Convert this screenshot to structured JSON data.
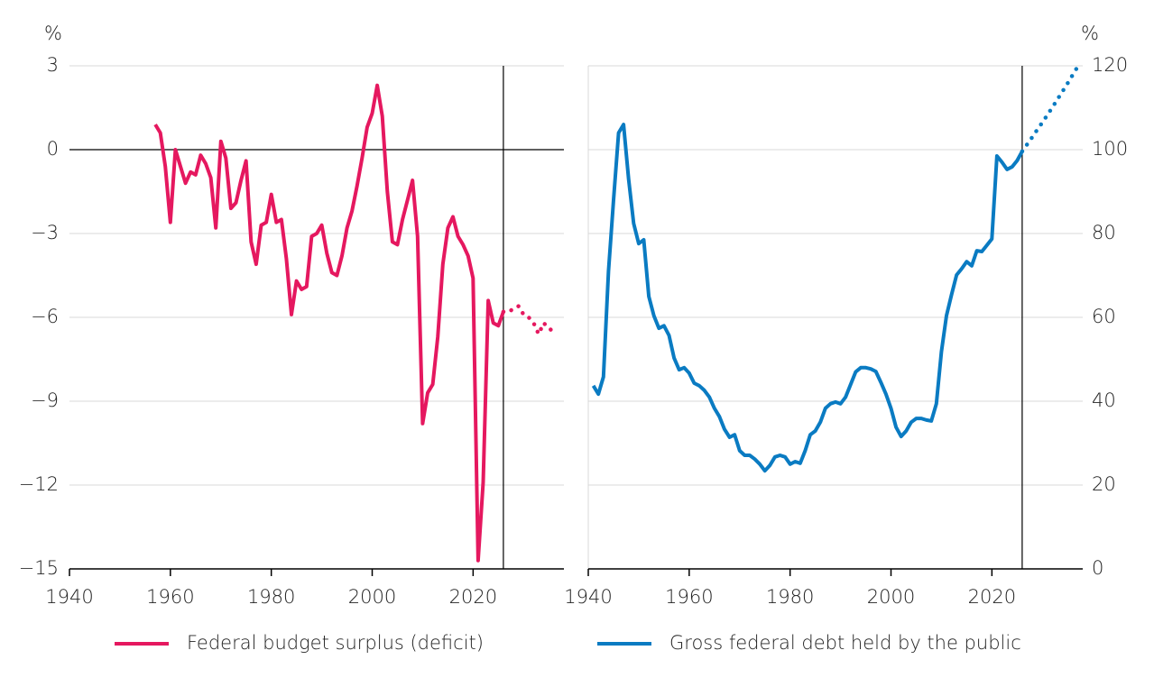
{
  "chart_data": [
    {
      "type": "line",
      "y_unit": "%",
      "y_axis_side": "left",
      "xlim": [
        1940,
        2038
      ],
      "xticks": [
        1940,
        1960,
        1980,
        2000,
        2020
      ],
      "ylim": [
        -15,
        3
      ],
      "yticks": [
        {
          "value": -15,
          "label": "−15"
        },
        {
          "value": -12,
          "label": "−12"
        },
        {
          "value": -9,
          "label": "−9"
        },
        {
          "value": -6,
          "label": "−6"
        },
        {
          "value": -3,
          "label": "−3"
        },
        0,
        3
      ],
      "grid": true,
      "zero_line": true,
      "vline": 2026,
      "series": [
        {
          "name": "Federal budget surplus (deficit)",
          "color": "#e5185f",
          "x": [
            1957,
            1958,
            1959,
            1960,
            1961,
            1962,
            1963,
            1964,
            1965,
            1966,
            1967,
            1968,
            1969,
            1970,
            1971,
            1972,
            1973,
            1974,
            1975,
            1976,
            1977,
            1978,
            1979,
            1980,
            1981,
            1982,
            1983,
            1984,
            1985,
            1986,
            1987,
            1988,
            1989,
            1990,
            1991,
            1992,
            1993,
            1994,
            1995,
            1996,
            1997,
            1998,
            1999,
            2000,
            2001,
            2002,
            2003,
            2004,
            2005,
            2006,
            2007,
            2008,
            2009,
            2010,
            2011,
            2012,
            2013,
            2014,
            2015,
            2016,
            2017,
            2018,
            2019,
            2020,
            2021,
            2022,
            2023,
            2024,
            2025,
            2026
          ],
          "values": [
            0.9,
            0.6,
            -0.6,
            -2.6,
            0.0,
            -0.6,
            -1.2,
            -0.8,
            -0.9,
            -0.2,
            -0.5,
            -1.0,
            -2.8,
            0.3,
            -0.3,
            -2.1,
            -1.9,
            -1.1,
            -0.4,
            -3.3,
            -4.1,
            -2.7,
            -2.6,
            -1.6,
            -2.6,
            -2.5,
            -3.9,
            -5.9,
            -4.7,
            -5.0,
            -4.9,
            -3.1,
            -3.0,
            -2.7,
            -3.7,
            -4.4,
            -4.5,
            -3.8,
            -2.8,
            -2.2,
            -1.3,
            -0.3,
            0.8,
            1.3,
            2.3,
            1.2,
            -1.5,
            -3.3,
            -3.4,
            -2.5,
            -1.8,
            -1.1,
            -3.1,
            -9.8,
            -8.7,
            -8.4,
            -6.7,
            -4.1,
            -2.8,
            -2.4,
            -3.1,
            -3.4,
            -3.8,
            -4.6,
            -14.7,
            -11.9,
            -5.4,
            -6.2,
            -6.3,
            -5.8
          ]
        },
        {
          "color": "#e5185f",
          "dotted": true,
          "x": [
            2026,
            2027,
            2028,
            2029,
            2030,
            2031,
            2032,
            2033,
            2034,
            2035,
            2036
          ],
          "values": [
            -5.8,
            -5.8,
            -5.7,
            -5.6,
            -5.9,
            -6.0,
            -6.2,
            -6.6,
            -6.2,
            -6.4,
            -6.5
          ]
        }
      ]
    },
    {
      "type": "line",
      "y_unit": "%",
      "y_axis_side": "right",
      "xlim": [
        1940,
        2038
      ],
      "xticks": [
        1940,
        1960,
        1980,
        2000,
        2020
      ],
      "ylim": [
        0,
        120
      ],
      "yticks": [
        0,
        20,
        40,
        60,
        80,
        100,
        120
      ],
      "grid": true,
      "zero_line": false,
      "vline": 2026,
      "series": [
        {
          "name": "Gross federal debt held by the public",
          "color": "#0a7bc2",
          "x": [
            1941,
            1942,
            1943,
            1944,
            1945,
            1946,
            1947,
            1948,
            1949,
            1950,
            1951,
            1952,
            1953,
            1954,
            1955,
            1956,
            1957,
            1958,
            1959,
            1960,
            1961,
            1962,
            1963,
            1964,
            1965,
            1966,
            1967,
            1968,
            1969,
            1970,
            1971,
            1972,
            1973,
            1974,
            1975,
            1976,
            1977,
            1978,
            1979,
            1980,
            1981,
            1982,
            1983,
            1984,
            1985,
            1986,
            1987,
            1988,
            1989,
            1990,
            1991,
            1992,
            1993,
            1994,
            1995,
            1996,
            1997,
            1998,
            1999,
            2000,
            2001,
            2002,
            2003,
            2004,
            2005,
            2006,
            2007,
            2008,
            2009,
            2010,
            2011,
            2012,
            2013,
            2014,
            2015,
            2016,
            2017,
            2018,
            2019,
            2020,
            2021,
            2022,
            2023,
            2024,
            2025,
            2026
          ],
          "values": [
            43.7,
            41.7,
            45.8,
            71,
            88,
            104,
            106,
            93,
            82.4,
            77.6,
            78.5,
            65,
            60.4,
            57.4,
            58,
            55.7,
            50.3,
            47.5,
            48,
            46.7,
            44.3,
            43.7,
            42.6,
            41,
            38.3,
            36.3,
            33.3,
            31.4,
            32,
            28.2,
            27.1,
            27.1,
            26.2,
            25,
            23.4,
            24.7,
            26.7,
            27.1,
            26.7,
            25,
            25.6,
            25.2,
            28.2,
            32,
            32.9,
            35,
            38.3,
            39.4,
            39.8,
            39.4,
            41,
            44,
            47,
            48,
            48,
            47.7,
            47.1,
            44.5,
            41.7,
            38.3,
            33.8,
            31.6,
            32.9,
            35,
            35.9,
            35.9,
            35.5,
            35.3,
            39.4,
            51.8,
            60.4,
            65.4,
            70.1,
            71.6,
            73.3,
            72.3,
            75.9,
            75.7,
            77.2,
            78.7,
            98.5,
            97,
            95.3,
            95.9,
            97.4,
            99.6
          ]
        },
        {
          "color": "#0a7bc2",
          "dotted": true,
          "x": [
            2026,
            2027,
            2028,
            2029,
            2030,
            2031,
            2032,
            2033,
            2034,
            2035,
            2036,
            2037
          ],
          "values": [
            99.6,
            101.3,
            103,
            104.8,
            106.5,
            108.3,
            110.1,
            112,
            113.9,
            115.8,
            117.8,
            119.8
          ]
        }
      ]
    }
  ]
}
